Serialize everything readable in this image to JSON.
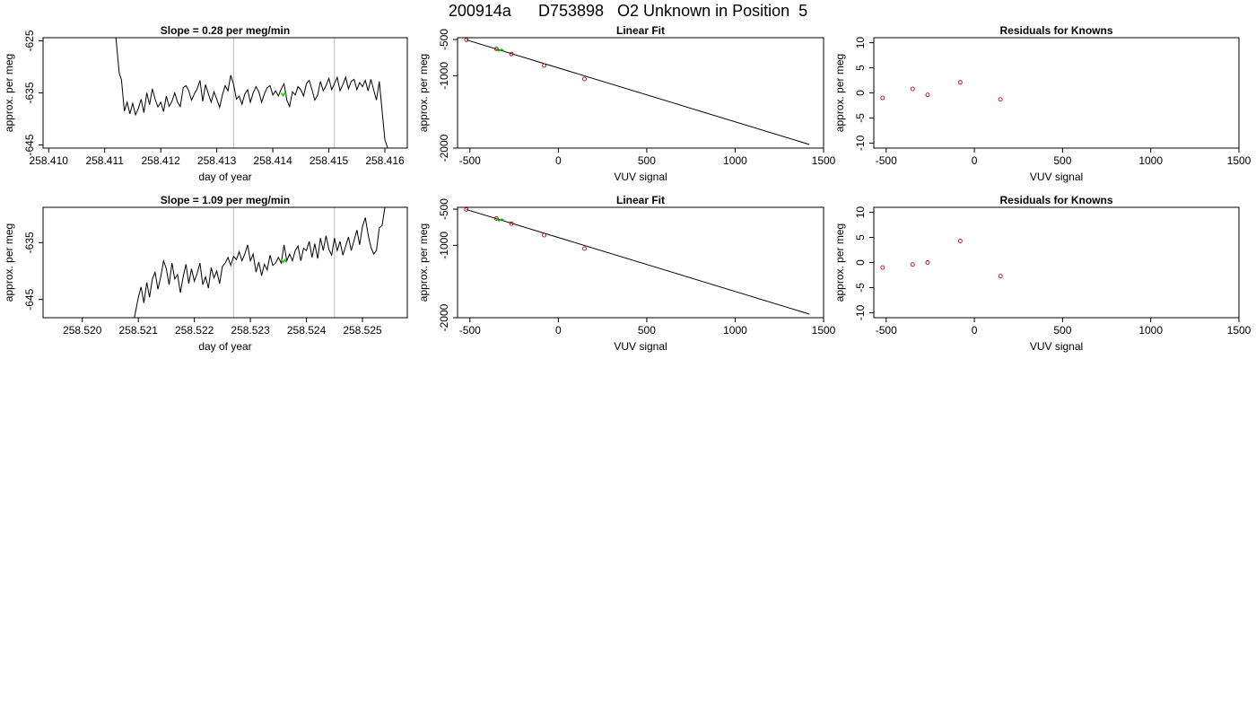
{
  "page": {
    "title_run": "200914a",
    "title_sample": "D753898",
    "title_desc": "O2 Unknown in Position  5"
  },
  "colors": {
    "line": "#000000",
    "marker_known": "#cc0000",
    "marker_unknown": "#00cc00",
    "vline": "#bbbbbb"
  },
  "chart_data": [
    {
      "id": "time-1",
      "type": "line",
      "title": "Slope =  0.28  per meg/min",
      "xlabel": "day of year",
      "ylabel": "approx. per meg",
      "xlim": [
        258.4099,
        258.4164
      ],
      "ylim": [
        -645.6,
        -624.4
      ],
      "xticks": [
        "258.410",
        "258.411",
        "258.412",
        "258.413",
        "258.414",
        "258.415",
        "258.416"
      ],
      "yticks": [
        "-625",
        "-635",
        "-645"
      ],
      "vlines": [
        258.4133,
        258.4151
      ],
      "series": [
        {
          "x": [
            258.4112,
            258.41126,
            258.4113,
            258.41135,
            258.4114,
            258.41145,
            258.4115,
            258.41155,
            258.4116,
            258.41165,
            258.4117,
            258.41175,
            258.4118,
            258.41185,
            258.4119,
            258.41195,
            258.412,
            258.41205,
            258.4121,
            258.41215,
            258.4122,
            258.41225,
            258.4123,
            258.41235,
            258.4124,
            258.41245,
            258.4125,
            258.41255,
            258.4126,
            258.41265,
            258.4127,
            258.41275,
            258.4128,
            258.41285,
            258.4129,
            258.41295,
            258.413,
            258.41305,
            258.4131,
            258.41315,
            258.4132,
            258.41325,
            258.4133,
            258.41335,
            258.4134,
            258.41345,
            258.4135,
            258.41355,
            258.4136,
            258.41365,
            258.4137,
            258.41375,
            258.4138,
            258.41385,
            258.4139,
            258.41395,
            258.414,
            258.41405,
            258.4141,
            258.41415,
            258.4142,
            258.41425,
            258.4143,
            258.41435,
            258.4144,
            258.41445,
            258.4145,
            258.41455,
            258.4146,
            258.41465,
            258.4147,
            258.41475,
            258.4148,
            258.41485,
            258.4149,
            258.41495,
            258.415,
            258.41505,
            258.4151,
            258.41515,
            258.4152,
            258.41525,
            258.4153,
            258.41535,
            258.4154,
            258.41545,
            258.4155,
            258.41555,
            258.4156,
            258.41565,
            258.4157,
            258.41575,
            258.4158,
            258.41585,
            258.4159,
            258.41595,
            258.416,
            258.41605
          ],
          "y": [
            -624.4,
            -631.2,
            -632.5,
            -638.5,
            -636.8,
            -639.0,
            -637.0,
            -639.2,
            -638.0,
            -636.2,
            -638.8,
            -635.0,
            -637.3,
            -634.2,
            -636.2,
            -637.7,
            -636.8,
            -638.6,
            -635.6,
            -637.6,
            -636.6,
            -635.0,
            -636.8,
            -637.6,
            -634.0,
            -633.6,
            -634.6,
            -636.4,
            -635.2,
            -634.2,
            -632.6,
            -636.6,
            -633.4,
            -635.2,
            -636.8,
            -634.8,
            -636.2,
            -637.8,
            -635.4,
            -633.6,
            -634.6,
            -631.6,
            -633.4,
            -636.2,
            -635.6,
            -637.2,
            -635.2,
            -634.4,
            -636.8,
            -635.0,
            -633.8,
            -634.8,
            -636.8,
            -635.2,
            -634.0,
            -633.6,
            -635.4,
            -634.6,
            -635.6,
            -634.2,
            -633.2,
            -636.4,
            -637.6,
            -634.8,
            -635.4,
            -633.8,
            -634.4,
            -635.6,
            -633.2,
            -632.6,
            -634.4,
            -636.4,
            -635.4,
            -632.8,
            -634.6,
            -633.6,
            -632.2,
            -634.4,
            -633.2,
            -632.0,
            -634.6,
            -633.4,
            -632.0,
            -634.2,
            -632.8,
            -632.4,
            -634.4,
            -633.0,
            -633.8,
            -632.6,
            -634.6,
            -632.4,
            -634.4,
            -636.4,
            -632.8,
            -638.4,
            -644.0,
            -645.6
          ]
        }
      ],
      "highlight_x": 258.4142,
      "highlight_y": -635.0
    },
    {
      "id": "fit-1",
      "type": "line",
      "title": "Linear Fit",
      "xlabel": "VUV signal",
      "ylabel": "approx. per meg",
      "xlim": [
        -570,
        1500
      ],
      "ylim": [
        -2000,
        -475
      ],
      "xticks": [
        "-500",
        "0",
        "500",
        "1000",
        "1500"
      ],
      "yticks": [
        "-500",
        "-1000",
        "-2000"
      ],
      "fit_line": {
        "x": [
          -520,
          1420
        ],
        "y": [
          -505,
          -1950
        ]
      },
      "known_points": {
        "x": [
          -520,
          -350,
          -265,
          -80,
          148
        ],
        "y": [
          -505,
          -630,
          -700,
          -860,
          -1045
        ]
      },
      "unknown_points": {
        "x": [
          -332
        ],
        "y": [
          -634
        ]
      }
    },
    {
      "id": "resid-1",
      "type": "scatter",
      "title": "Residuals for Knowns",
      "xlabel": "VUV signal",
      "ylabel": "approx. per meg",
      "xlim": [
        -570,
        1500
      ],
      "ylim": [
        -11,
        11
      ],
      "xticks": [
        "-500",
        "0",
        "500",
        "1000",
        "1500"
      ],
      "yticks": [
        "-10",
        "-5",
        "0",
        "5",
        "10"
      ],
      "points": {
        "x": [
          -520,
          -350,
          -265,
          -80,
          148
        ],
        "y": [
          -1.0,
          0.8,
          -0.4,
          2.1,
          -1.3
        ]
      }
    },
    {
      "id": "time-2",
      "type": "line",
      "title": "Slope =  1.09  per meg/min",
      "xlabel": "day of year",
      "ylabel": "approx. per meg",
      "xlim": [
        258.5193,
        258.5258
      ],
      "ylim": [
        -648.2,
        -628.8
      ],
      "xticks": [
        "258.520",
        "258.521",
        "258.522",
        "258.523",
        "258.524",
        "258.525"
      ],
      "yticks": [
        "-635",
        "-645"
      ],
      "vlines": [
        258.5227,
        258.5245
      ],
      "series": [
        {
          "x": [
            258.52093,
            258.521,
            258.52105,
            258.5211,
            258.52115,
            258.5212,
            258.52125,
            258.5213,
            258.52135,
            258.5214,
            258.52145,
            258.5215,
            258.52155,
            258.5216,
            258.52165,
            258.5217,
            258.52175,
            258.5218,
            258.52185,
            258.5219,
            258.52195,
            258.522,
            258.52205,
            258.5221,
            258.52215,
            258.5222,
            258.52225,
            258.5223,
            258.52235,
            258.5224,
            258.52245,
            258.5225,
            258.52255,
            258.5226,
            258.52265,
            258.5227,
            258.52275,
            258.5228,
            258.52285,
            258.5229,
            258.52295,
            258.523,
            258.52305,
            258.5231,
            258.52315,
            258.5232,
            258.52325,
            258.5233,
            258.52335,
            258.5234,
            258.52345,
            258.5235,
            258.52355,
            258.5236,
            258.52365,
            258.5237,
            258.52375,
            258.5238,
            258.52385,
            258.5239,
            258.52395,
            258.524,
            258.52405,
            258.5241,
            258.52415,
            258.5242,
            258.52425,
            258.5243,
            258.52435,
            258.5244,
            258.52445,
            258.5245,
            258.52455,
            258.5246,
            258.52465,
            258.5247,
            258.52475,
            258.5248,
            258.52485,
            258.5249,
            258.52495,
            258.525,
            258.52505,
            258.5251,
            258.52515,
            258.5252,
            258.52525,
            258.5253,
            258.52535,
            258.5254
          ],
          "y": [
            -648.2,
            -644.6,
            -642.8,
            -645.6,
            -642.0,
            -644.6,
            -641.4,
            -640.2,
            -643.2,
            -641.0,
            -638.2,
            -639.6,
            -642.4,
            -638.6,
            -641.4,
            -640.6,
            -643.8,
            -641.0,
            -638.8,
            -642.2,
            -639.6,
            -641.8,
            -640.4,
            -638.6,
            -642.4,
            -641.0,
            -643.0,
            -639.4,
            -641.2,
            -640.0,
            -642.2,
            -639.2,
            -638.6,
            -637.6,
            -639.0,
            -637.4,
            -638.0,
            -636.6,
            -638.2,
            -637.0,
            -635.4,
            -638.2,
            -637.0,
            -640.2,
            -638.4,
            -640.8,
            -638.8,
            -639.8,
            -637.2,
            -639.0,
            -638.6,
            -637.6,
            -638.6,
            -635.4,
            -638.2,
            -637.0,
            -638.2,
            -636.4,
            -635.6,
            -638.2,
            -636.0,
            -636.4,
            -634.8,
            -637.6,
            -635.2,
            -637.8,
            -634.2,
            -636.4,
            -633.8,
            -636.2,
            -637.2,
            -634.2,
            -636.4,
            -634.8,
            -637.2,
            -635.6,
            -634.0,
            -636.4,
            -634.6,
            -632.8,
            -635.4,
            -632.2,
            -630.6,
            -633.6,
            -635.8,
            -637.0,
            -636.4,
            -632.4,
            -632.0,
            -628.8
          ]
        }
      ],
      "highlight_x": 258.5236,
      "highlight_y": -638.0
    },
    {
      "id": "fit-2",
      "type": "line",
      "title": "Linear Fit",
      "xlabel": "VUV signal",
      "ylabel": "approx. per meg",
      "xlim": [
        -570,
        1500
      ],
      "ylim": [
        -2000,
        -475
      ],
      "xticks": [
        "-500",
        "0",
        "500",
        "1000",
        "1500"
      ],
      "yticks": [
        "-500",
        "-1000",
        "-2000"
      ],
      "fit_line": {
        "x": [
          -520,
          1420
        ],
        "y": [
          -505,
          -1950
        ]
      },
      "known_points": {
        "x": [
          -520,
          -350,
          -265,
          -80,
          148
        ],
        "y": [
          -505,
          -630,
          -700,
          -860,
          -1045
        ]
      },
      "unknown_points": {
        "x": [
          -330
        ],
        "y": [
          -636
        ]
      }
    },
    {
      "id": "resid-2",
      "type": "scatter",
      "title": "Residuals for Knowns",
      "xlabel": "VUV signal",
      "ylabel": "approx. per meg",
      "xlim": [
        -570,
        1500
      ],
      "ylim": [
        -11,
        11
      ],
      "xticks": [
        "-500",
        "0",
        "500",
        "1000",
        "1500"
      ],
      "yticks": [
        "-10",
        "-5",
        "0",
        "5",
        "10"
      ],
      "points": {
        "x": [
          -520,
          -350,
          -265,
          -80,
          148
        ],
        "y": [
          -1.0,
          -0.4,
          0.0,
          4.3,
          -2.7
        ]
      }
    }
  ]
}
